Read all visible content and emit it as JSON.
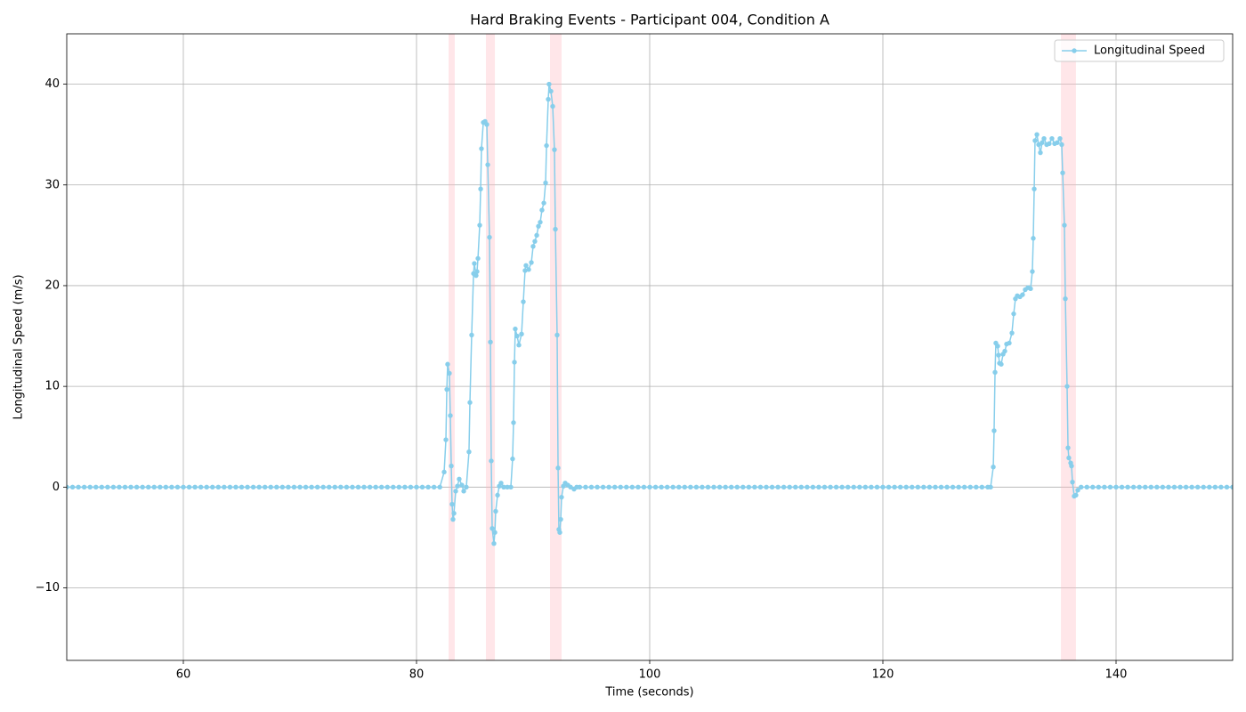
{
  "chart_data": {
    "type": "line",
    "title": "Hard Braking Events - Participant 004, Condition A",
    "x_label": "Time (seconds)",
    "y_label": "Longitudinal Speed (m/s)",
    "xlim": [
      50,
      150
    ],
    "xticks": [
      60,
      80,
      100,
      120,
      140
    ],
    "ylim": [
      -17.2,
      45
    ],
    "yticks": [
      {
        "value": -10,
        "label": "−10"
      },
      0,
      10,
      20,
      30,
      40
    ],
    "grid": true,
    "legend": "upper right",
    "shaded_regions": [
      [
        82.75,
        83.28
      ],
      [
        85.95,
        86.72
      ],
      [
        91.45,
        92.44
      ],
      [
        135.27,
        136.56
      ]
    ],
    "shade_color": "#ffb6c1",
    "x": [
      50,
      50.5,
      51,
      51.5,
      52,
      52.5,
      53,
      53.5,
      54,
      54.5,
      55,
      55.5,
      56,
      56.5,
      57,
      57.5,
      58,
      58.5,
      59,
      59.5,
      60,
      60.5,
      61,
      61.5,
      62,
      62.5,
      63,
      63.5,
      64,
      64.5,
      65,
      65.5,
      66,
      66.5,
      67,
      67.5,
      68,
      68.5,
      69,
      69.5,
      70,
      70.5,
      71,
      71.5,
      72,
      72.5,
      73,
      73.5,
      74,
      74.5,
      75,
      75.5,
      76,
      76.5,
      77,
      77.5,
      78,
      78.5,
      79,
      79.5,
      80,
      80.5,
      81,
      81.5,
      82,
      82.37,
      82.52,
      82.6,
      82.67,
      82.82,
      82.9,
      82.98,
      83.05,
      83.13,
      83.21,
      83.36,
      83.51,
      83.66,
      83.89,
      84.05,
      84.27,
      84.5,
      84.58,
      84.73,
      84.89,
      84.96,
      85.11,
      85.19,
      85.27,
      85.42,
      85.5,
      85.57,
      85.73,
      85.88,
      86.03,
      86.11,
      86.26,
      86.34,
      86.41,
      86.49,
      86.64,
      86.72,
      86.79,
      86.95,
      87.1,
      87.25,
      87.48,
      87.79,
      88.09,
      88.24,
      88.32,
      88.4,
      88.47,
      88.63,
      88.78,
      89.01,
      89.16,
      89.31,
      89.39,
      89.62,
      89.85,
      90,
      90.15,
      90.31,
      90.46,
      90.61,
      90.76,
      90.92,
      91.07,
      91.15,
      91.3,
      91.37,
      91.53,
      91.68,
      91.83,
      91.91,
      92.06,
      92.14,
      92.21,
      92.29,
      92.37,
      92.44,
      92.6,
      92.75,
      92.98,
      93.21,
      93.51,
      93.74,
      94,
      94.5,
      95,
      95.5,
      96,
      96.5,
      97,
      97.5,
      98,
      98.5,
      99,
      99.5,
      100,
      100.5,
      101,
      101.5,
      102,
      102.5,
      103,
      103.5,
      104,
      104.5,
      105,
      105.5,
      106,
      106.5,
      107,
      107.5,
      108,
      108.5,
      109,
      109.5,
      110,
      110.5,
      111,
      111.5,
      112,
      112.5,
      113,
      113.5,
      114,
      114.5,
      115,
      115.5,
      116,
      116.5,
      117,
      117.5,
      118,
      118.5,
      119,
      119.5,
      120,
      120.5,
      121,
      121.5,
      122,
      122.5,
      123,
      123.5,
      124,
      124.5,
      125,
      125.5,
      126,
      126.5,
      127,
      127.5,
      128,
      128.5,
      129,
      129.24,
      129.47,
      129.54,
      129.62,
      129.69,
      129.85,
      129.92,
      130,
      130.15,
      130.31,
      130.46,
      130.61,
      130.84,
      131.07,
      131.22,
      131.37,
      131.53,
      131.76,
      131.98,
      132.21,
      132.44,
      132.67,
      132.82,
      132.9,
      132.98,
      133.05,
      133.21,
      133.36,
      133.51,
      133.66,
      133.82,
      134.05,
      134.27,
      134.5,
      134.73,
      134.96,
      135.19,
      135.34,
      135.42,
      135.57,
      135.65,
      135.8,
      135.88,
      135.95,
      136.11,
      136.18,
      136.26,
      136.41,
      136.56,
      136.72,
      137,
      137.5,
      138,
      138.5,
      139,
      139.5,
      140,
      140.5,
      141,
      141.5,
      142,
      142.5,
      143,
      143.5,
      144,
      144.5,
      145,
      145.5,
      146,
      146.5,
      147,
      147.5,
      148,
      148.5,
      149,
      149.5,
      150
    ],
    "series": [
      {
        "name": "Longitudinal Speed",
        "color": "#87ceeb",
        "values": [
          0,
          0,
          0,
          0,
          0,
          0,
          0,
          0,
          0,
          0,
          0,
          0,
          0,
          0,
          0,
          0,
          0,
          0,
          0,
          0,
          0,
          0,
          0,
          0,
          0,
          0,
          0,
          0,
          0,
          0,
          0,
          0,
          0,
          0,
          0,
          0,
          0,
          0,
          0,
          0,
          0,
          0,
          0,
          0,
          0,
          0,
          0,
          0,
          0,
          0,
          0,
          0,
          0,
          0,
          0,
          0,
          0,
          0,
          0,
          0,
          0,
          0,
          0,
          0,
          0,
          1.5,
          4.7,
          9.7,
          12.2,
          11.3,
          7.1,
          2.1,
          -1.7,
          -3.2,
          -2.6,
          -0.4,
          0.1,
          0.8,
          0.2,
          -0.4,
          0,
          3.5,
          8.4,
          15.1,
          21.2,
          22.2,
          21,
          21.4,
          22.7,
          26,
          29.6,
          33.6,
          36.2,
          36.3,
          36,
          32,
          24.8,
          14.4,
          2.6,
          -4.1,
          -5.6,
          -4.5,
          -2.4,
          -0.8,
          0.1,
          0.4,
          0,
          0,
          0,
          2.8,
          6.4,
          12.4,
          15.7,
          15,
          14.1,
          15.2,
          18.4,
          21.5,
          22,
          21.6,
          22.3,
          23.9,
          24.4,
          25,
          25.9,
          26.3,
          27.5,
          28.2,
          30.2,
          33.9,
          38.5,
          40,
          39.3,
          37.8,
          33.5,
          25.6,
          15.1,
          1.9,
          -4.2,
          -4.5,
          -3.2,
          -1,
          0.1,
          0.4,
          0.2,
          0,
          -0.2,
          0,
          0,
          0,
          0,
          0,
          0,
          0,
          0,
          0,
          0,
          0,
          0,
          0,
          0,
          0,
          0,
          0,
          0,
          0,
          0,
          0,
          0,
          0,
          0,
          0,
          0,
          0,
          0,
          0,
          0,
          0,
          0,
          0,
          0,
          0,
          0,
          0,
          0,
          0,
          0,
          0,
          0,
          0,
          0,
          0,
          0,
          0,
          0,
          0,
          0,
          0,
          0,
          0,
          0,
          0,
          0,
          0,
          0,
          0,
          0,
          0,
          0,
          0,
          0,
          0,
          0,
          0,
          0,
          0,
          0,
          0,
          0,
          0,
          2,
          5.6,
          11.4,
          14.3,
          14,
          13.1,
          12.3,
          12.2,
          13.2,
          13.5,
          14.2,
          14.3,
          15.3,
          17.2,
          18.7,
          19,
          18.9,
          19.1,
          19.6,
          19.8,
          19.7,
          21.4,
          24.7,
          29.6,
          34.4,
          35,
          34,
          33.2,
          34.2,
          34.6,
          34,
          34.1,
          34.6,
          34.1,
          34.2,
          34.6,
          34,
          31.2,
          26,
          18.7,
          10,
          3.9,
          2.9,
          2.4,
          2.1,
          0.5,
          -0.9,
          -0.8,
          -0.3,
          0,
          0,
          0,
          0,
          0,
          0,
          0,
          0,
          0,
          0,
          0,
          0,
          0,
          0,
          0,
          0,
          0,
          0,
          0,
          0,
          0,
          0,
          0,
          0,
          0,
          0,
          0
        ]
      }
    ]
  }
}
